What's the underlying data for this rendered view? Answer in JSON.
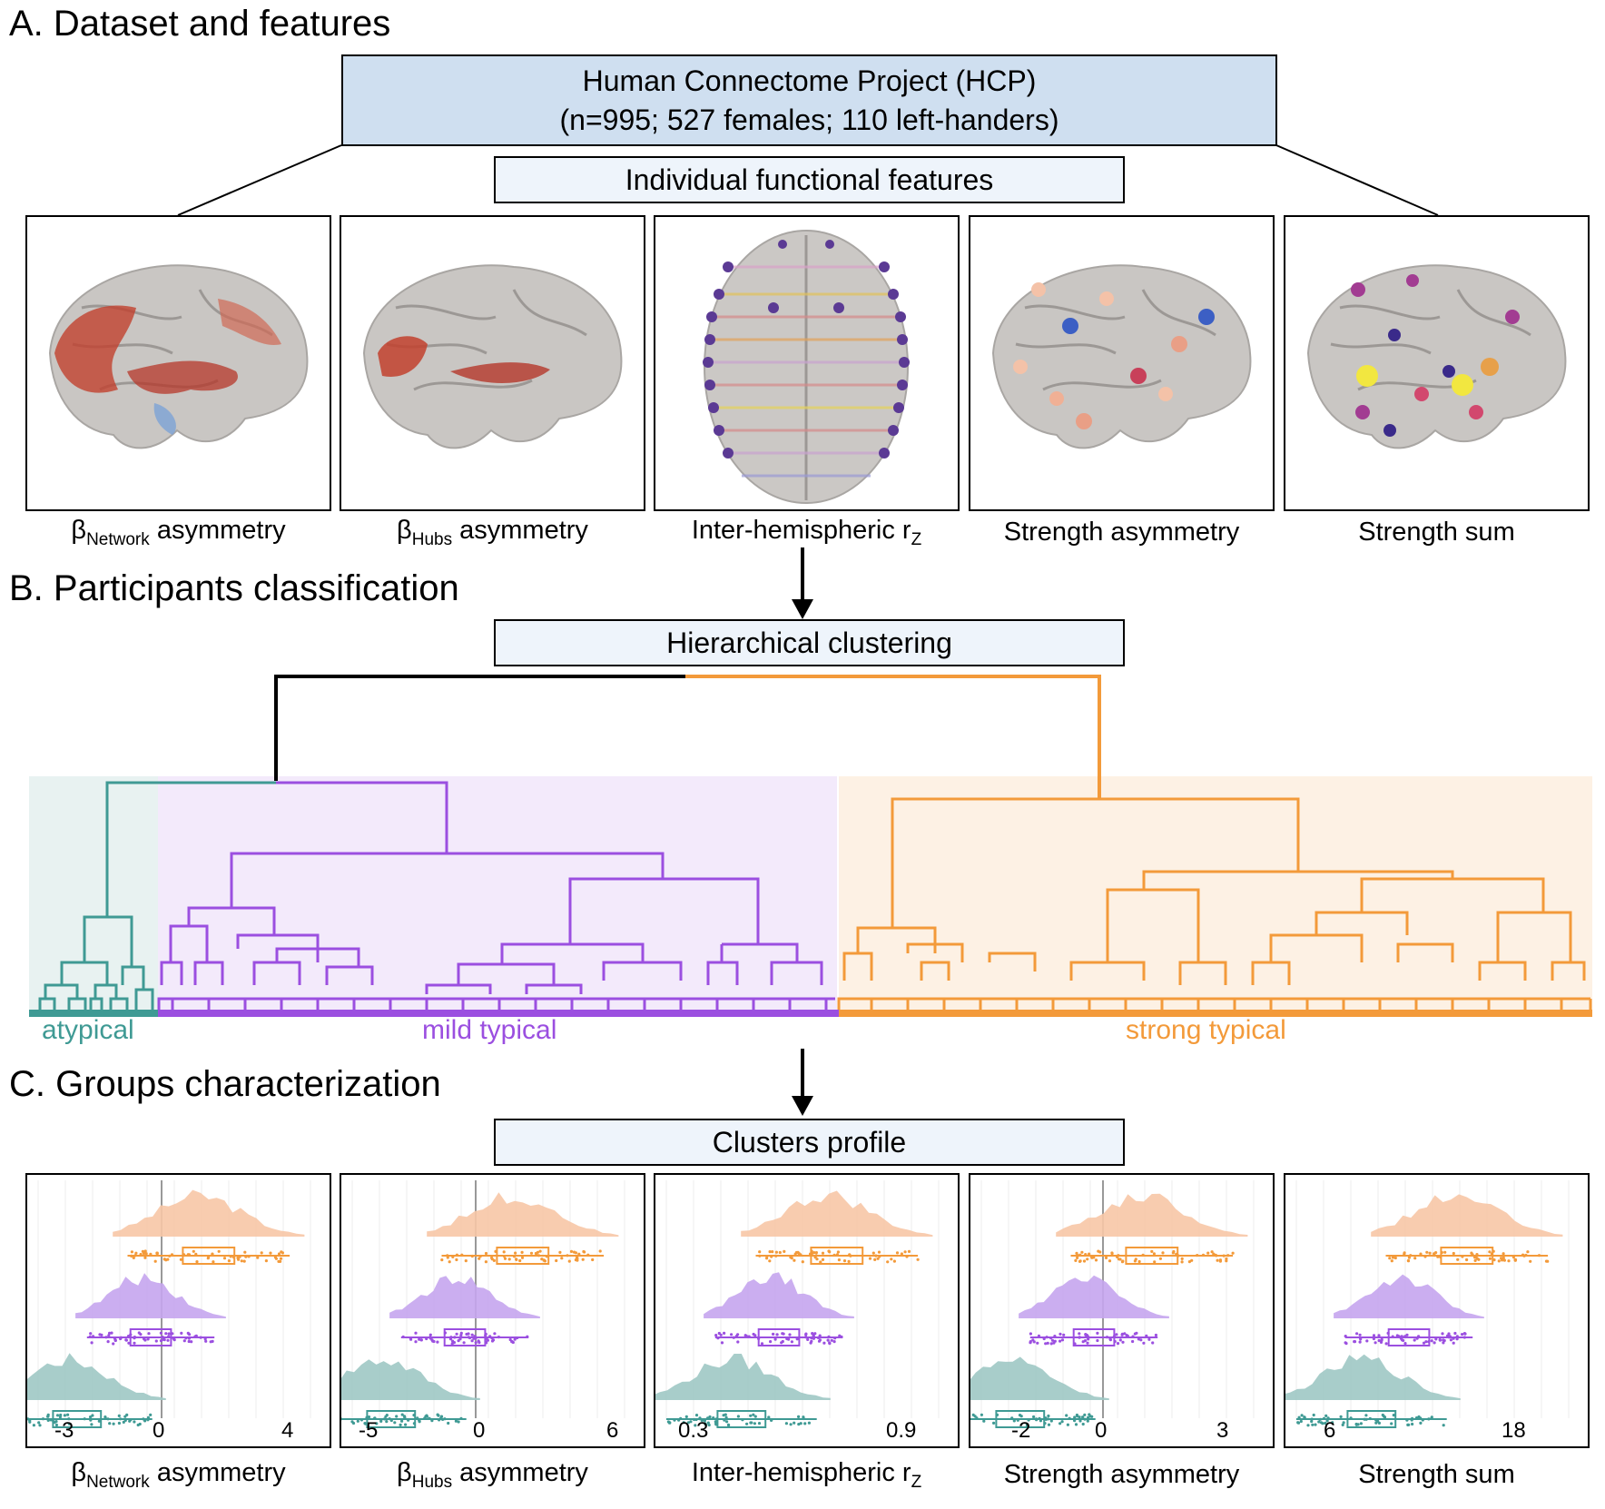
{
  "sections": {
    "a": "A. Dataset and features",
    "b": "B. Participants classification",
    "c": "C. Groups characterization"
  },
  "dataset": {
    "title": "Human Connectome Project (HCP)",
    "details": "(n=995; 527 females; 110 left-handers)"
  },
  "features_box": "Individual functional features",
  "clustering_box": "Hierarchical clustering",
  "profile_box": "Clusters profile",
  "features": [
    {
      "main": "β",
      "sub": "Network",
      "rest": " asymmetry"
    },
    {
      "main": "β",
      "sub": "Hubs",
      "rest": " asymmetry"
    },
    {
      "main": "Inter-hemispheric r",
      "sub": "Z",
      "rest": ""
    },
    {
      "main": "Strength asymmetry",
      "sub": "",
      "rest": ""
    },
    {
      "main": "Strength sum",
      "sub": "",
      "rest": ""
    }
  ],
  "groups": [
    {
      "name": "atypical",
      "color": "#3f9a94"
    },
    {
      "name": "mild typical",
      "color": "#9b4fe0"
    },
    {
      "name": "strong typical",
      "color": "#f39a3a"
    }
  ],
  "profile_axes": [
    {
      "ticks": [
        {
          "label": "-3",
          "value": -3
        },
        {
          "label": "0",
          "value": 0
        },
        {
          "label": "4",
          "value": 4
        }
      ]
    },
    {
      "ticks": [
        {
          "label": "-5",
          "value": -5
        },
        {
          "label": "0",
          "value": 0
        },
        {
          "label": "6",
          "value": 6
        }
      ]
    },
    {
      "ticks": [
        {
          "label": "0.3",
          "value": 0.3
        },
        {
          "label": "0.9",
          "value": 0.9
        }
      ]
    },
    {
      "ticks": [
        {
          "label": "-2",
          "value": -2
        },
        {
          "label": "0",
          "value": 0
        },
        {
          "label": "3",
          "value": 3
        }
      ]
    },
    {
      "ticks": [
        {
          "label": "6",
          "value": 6
        },
        {
          "label": "18",
          "value": 18
        }
      ]
    }
  ],
  "colors": {
    "dark_box": "#cfdff0",
    "light_box": "#eef4fb",
    "atypical": "#3f9a94",
    "mild": "#9b4fe0",
    "strong": "#f39a3a"
  }
}
